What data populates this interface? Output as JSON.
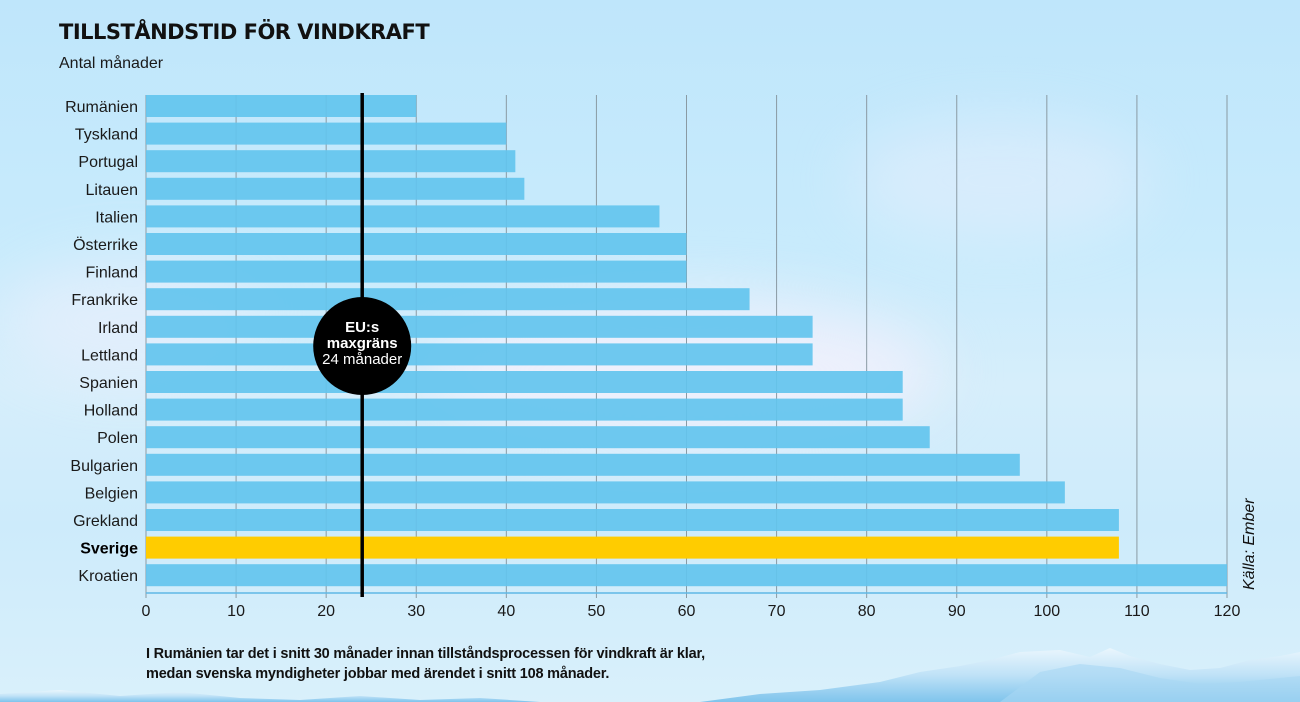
{
  "header": {
    "title": "TILLSTÅNDSTID FÖR VINDKRAFT",
    "subtitle": "Antal månader"
  },
  "caption": {
    "line1": "I Rumänien tar det i snitt 30 månader innan tillståndsprocessen för vindkraft är klar,",
    "line2": "medan svenska myndigheter jobbar med ärendet i snitt 108 månader."
  },
  "colors": {
    "bar": "#63c4ee",
    "highlight_bar": "#ffcc00",
    "reference_line": "#000000",
    "gridline": "#8a9aa3"
  },
  "chart_data": {
    "type": "bar",
    "orientation": "horizontal",
    "title": "TILLSTÅNDSTID FÖR VINDKRAFT",
    "subtitle": "Antal månader",
    "xlabel": "",
    "ylabel": "",
    "categories": [
      "Rumänien",
      "Tyskland",
      "Portugal",
      "Litauen",
      "Italien",
      "Österrike",
      "Finland",
      "Frankrike",
      "Irland",
      "Lettland",
      "Spanien",
      "Holland",
      "Polen",
      "Bulgarien",
      "Belgien",
      "Grekland",
      "Sverige",
      "Kroatien"
    ],
    "values": [
      30,
      40,
      41,
      42,
      57,
      60,
      60,
      67,
      74,
      74,
      84,
      84,
      87,
      97,
      102,
      108,
      108,
      120
    ],
    "highlight": "Sverige",
    "xlim": [
      0,
      120
    ],
    "xticks": [
      0,
      10,
      20,
      30,
      40,
      50,
      60,
      70,
      80,
      90,
      100,
      110,
      120
    ],
    "grid": "vertical",
    "reference_line": {
      "value": 24,
      "label_line1": "EU:s",
      "label_line2": "maxgräns",
      "label_line3": "24 månader"
    },
    "source": "Källa: Ember",
    "legend": "none"
  }
}
